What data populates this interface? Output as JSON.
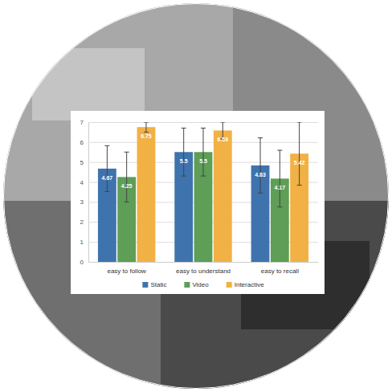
{
  "chart_data": {
    "type": "bar",
    "categories": [
      "easy to follow",
      "easy to understand",
      "easy to recall"
    ],
    "series": [
      {
        "name": "Static",
        "color": "#3f73ad",
        "values": [
          4.67,
          5.5,
          4.83
        ],
        "errors": [
          1.15,
          1.2,
          1.38
        ]
      },
      {
        "name": "Video",
        "color": "#5e9e57",
        "values": [
          4.25,
          5.5,
          4.17
        ],
        "errors": [
          1.25,
          1.2,
          1.42
        ]
      },
      {
        "name": "Interactive",
        "color": "#f2b144",
        "values": [
          6.75,
          6.58,
          5.42
        ],
        "errors": [
          0.25,
          0.42,
          1.58
        ]
      }
    ],
    "ylim": [
      0,
      7
    ],
    "yticks": [
      0,
      1,
      2,
      3,
      4,
      5,
      6,
      7
    ],
    "grid": true,
    "legend": "bottom",
    "data_labels": true
  }
}
